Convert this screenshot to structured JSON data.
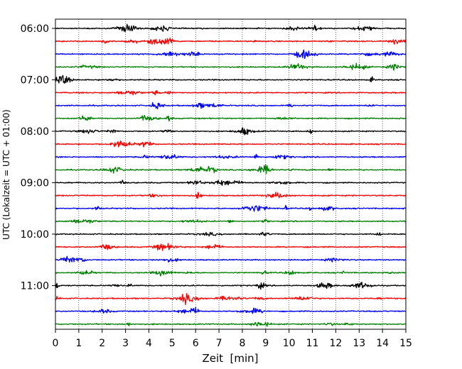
{
  "chart_data": {
    "type": "line",
    "title": "",
    "xlabel": "Zeit  [min]",
    "ylabel": "UTC (Lokalzeit = UTC + 01:00)",
    "xlim": [
      0,
      15
    ],
    "x_ticks": [
      "0",
      "1",
      "2",
      "3",
      "4",
      "5",
      "6",
      "7",
      "8",
      "9",
      "10",
      "11",
      "12",
      "13",
      "14",
      "15"
    ],
    "y_tick_labels": [
      "06:00",
      "07:00",
      "08:00",
      "09:00",
      "10:00",
      "11:00"
    ],
    "grid": "vertical dotted",
    "minutes_per_trace": 15,
    "trace_colors": [
      "#000000",
      "#ff0000",
      "#0000ff",
      "#008000"
    ],
    "traces": [
      {
        "start": "06:00",
        "color": "#000000"
      },
      {
        "start": "06:15",
        "color": "#ff0000"
      },
      {
        "start": "06:30",
        "color": "#0000ff"
      },
      {
        "start": "06:45",
        "color": "#008000"
      },
      {
        "start": "07:00",
        "color": "#000000"
      },
      {
        "start": "07:15",
        "color": "#ff0000"
      },
      {
        "start": "07:30",
        "color": "#0000ff"
      },
      {
        "start": "07:45",
        "color": "#008000"
      },
      {
        "start": "08:00",
        "color": "#000000"
      },
      {
        "start": "08:15",
        "color": "#ff0000"
      },
      {
        "start": "08:30",
        "color": "#0000ff"
      },
      {
        "start": "08:45",
        "color": "#008000"
      },
      {
        "start": "09:00",
        "color": "#000000"
      },
      {
        "start": "09:15",
        "color": "#ff0000"
      },
      {
        "start": "09:30",
        "color": "#0000ff"
      },
      {
        "start": "09:45",
        "color": "#008000"
      },
      {
        "start": "10:00",
        "color": "#000000"
      },
      {
        "start": "10:15",
        "color": "#ff0000"
      },
      {
        "start": "10:30",
        "color": "#0000ff"
      },
      {
        "start": "10:45",
        "color": "#008000"
      },
      {
        "start": "11:00",
        "color": "#000000"
      },
      {
        "start": "11:15",
        "color": "#ff0000"
      },
      {
        "start": "11:30",
        "color": "#0000ff"
      },
      {
        "start": "11:45",
        "color": "#008000"
      }
    ]
  }
}
